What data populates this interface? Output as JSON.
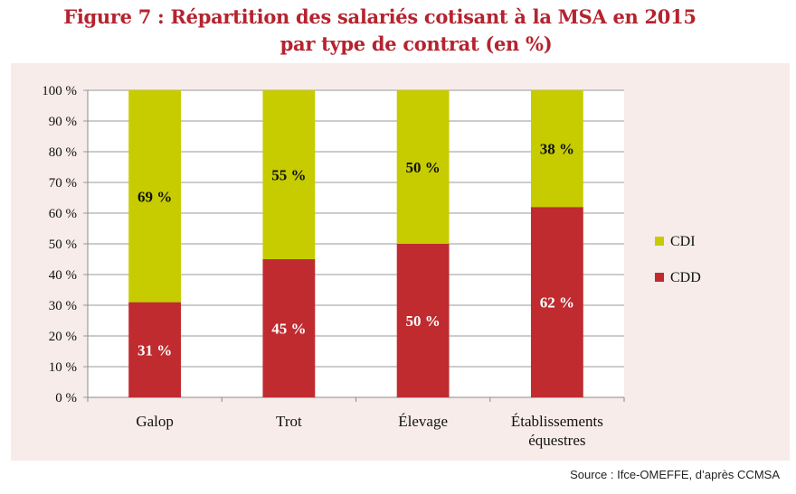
{
  "title_line1": "Figure 7 : Répartition des salariés cotisant à la MSA en 2015",
  "title_line2": "par type de contrat (en %)",
  "source": "Source : Ifce-OMEFFE, d’après CCMSA",
  "colors": {
    "CDD": "#bf2b2f",
    "CDI": "#c6cc00",
    "title": "#b5232f",
    "panel": "#f7ecea"
  },
  "chart_data": {
    "type": "bar",
    "stacked": true,
    "categories": [
      [
        "Galop"
      ],
      [
        "Trot"
      ],
      [
        "Élevage"
      ],
      [
        "Établissements",
        "équestres"
      ]
    ],
    "series": [
      {
        "name": "CDD",
        "values": [
          31,
          45,
          50,
          62
        ],
        "labels": [
          "31 %",
          "45 %",
          "50 %",
          "62 %"
        ]
      },
      {
        "name": "CDI",
        "values": [
          69,
          55,
          50,
          38
        ],
        "labels": [
          "69 %",
          "55 %",
          "50 %",
          "38 %"
        ]
      }
    ],
    "ylim": [
      0,
      100
    ],
    "yticks": [
      "0 %",
      "10 %",
      "20 %",
      "30 %",
      "40 %",
      "50 %",
      "60 %",
      "70 %",
      "80 %",
      "90 %",
      "100 %"
    ],
    "grid": true,
    "legend": {
      "position": "right",
      "entries": [
        "CDI",
        "CDD"
      ]
    }
  }
}
